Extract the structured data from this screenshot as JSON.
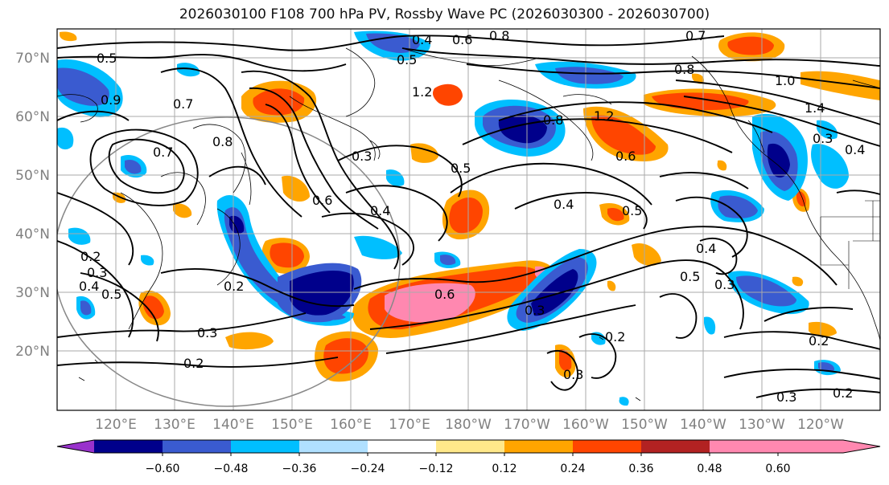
{
  "title": "2026030100 F108 700 hPa PV, Rossby Wave PC (2026030300 - 2026030700)",
  "lat_labels": [
    "70°N",
    "60°N",
    "50°N",
    "40°N",
    "30°N",
    "20°N"
  ],
  "lon_labels": [
    "120°E",
    "130°E",
    "140°E",
    "150°E",
    "160°E",
    "170°E",
    "180°W",
    "170°W",
    "160°W",
    "150°W",
    "140°W",
    "130°W",
    "120°W"
  ],
  "colorbar": {
    "colors": [
      "#9932cc",
      "#00008b",
      "#3a5bd0",
      "#00bfff",
      "#b0e0ff",
      "#ffffff",
      "#ffe88a",
      "#ffa500",
      "#ff4500",
      "#b22222",
      "#ff88b0"
    ],
    "tick_labels": [
      "−0.60",
      "−0.48",
      "−0.36",
      "−0.24",
      "−0.12",
      "0.12",
      "0.24",
      "0.36",
      "0.48",
      "0.60"
    ]
  },
  "contour_labels": [
    "0.7",
    "0.8",
    "1.0",
    "0.4",
    "0.5",
    "0.6",
    "0.8",
    "0.7",
    "0.8",
    "0.7",
    "0.9",
    "0.5",
    "1.2",
    "1.2",
    "0.6",
    "0.8",
    "0.5",
    "0.4",
    "0.3",
    "0.4",
    "0.4",
    "0.6",
    "0.5",
    "0.4",
    "0.2",
    "0.3",
    "0.4",
    "0.5",
    "0.2",
    "0.6",
    "0.3",
    "0.3",
    "0.2",
    "0.3",
    "0.2",
    "0.2",
    "0.3",
    "0.2",
    "0.3",
    "1.4",
    "0.5",
    "0.3"
  ],
  "colors": {
    "coast": "#000000",
    "grid": "#aaaaaa",
    "contour": "#000000"
  }
}
